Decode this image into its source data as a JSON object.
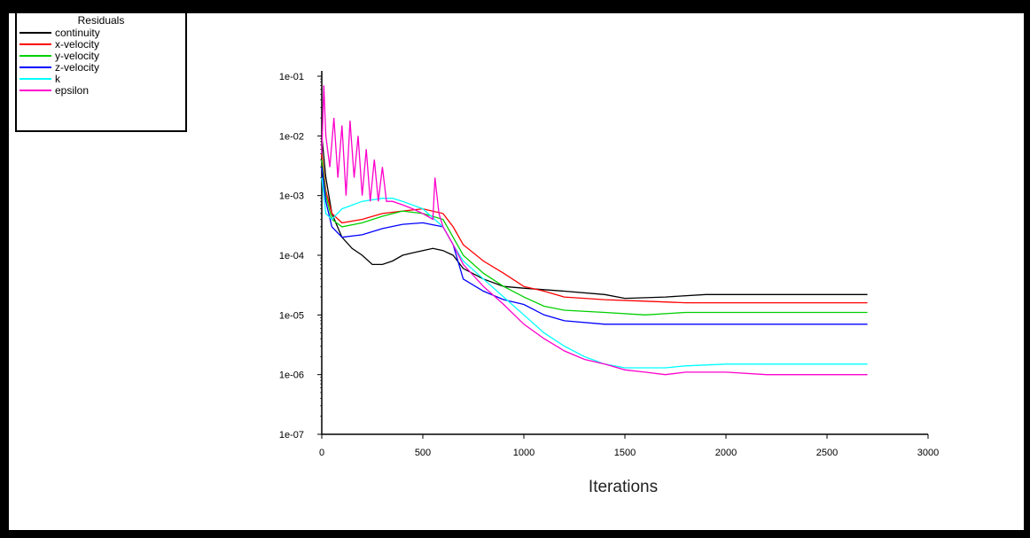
{
  "chart_data": {
    "type": "line",
    "title": "",
    "xlabel": "Iterations",
    "ylabel": "",
    "xlim": [
      0,
      3000
    ],
    "ylim": [
      1e-07,
      0.1
    ],
    "yscale": "log",
    "xticks": [
      "0",
      "500",
      "1000",
      "1500",
      "2000",
      "2500",
      "3000"
    ],
    "yticks": [
      "1e-07",
      "1e-06",
      "1e-05",
      "1e-04",
      "1e-03",
      "1e-02",
      "1e-01"
    ],
    "legend": {
      "title": "Residuals",
      "placement": "top-left"
    },
    "series": [
      {
        "name": "continuity",
        "color": "#000000",
        "x": [
          0,
          20,
          50,
          100,
          150,
          200,
          250,
          300,
          350,
          400,
          450,
          500,
          550,
          600,
          650,
          700,
          800,
          900,
          1000,
          1200,
          1400,
          1500,
          1700,
          1900,
          2000,
          2200,
          2400,
          2700
        ],
        "y": [
          0.01,
          0.002,
          0.0005,
          0.0002,
          0.00013,
          0.0001,
          7e-05,
          7e-05,
          8e-05,
          0.0001,
          0.00011,
          0.00012,
          0.00013,
          0.00012,
          0.0001,
          6e-05,
          4e-05,
          3e-05,
          2.8e-05,
          2.5e-05,
          2.2e-05,
          1.9e-05,
          2e-05,
          2.2e-05,
          2.2e-05,
          2.2e-05,
          2.2e-05,
          2.2e-05
        ]
      },
      {
        "name": "x-velocity",
        "color": "#ff0000",
        "x": [
          0,
          20,
          50,
          100,
          200,
          300,
          400,
          500,
          600,
          650,
          700,
          800,
          900,
          1000,
          1100,
          1200,
          1400,
          1600,
          1800,
          2000,
          2200,
          2400,
          2700
        ],
        "y": [
          0.005,
          0.0012,
          0.0005,
          0.00035,
          0.0004,
          0.0005,
          0.00055,
          0.0006,
          0.0005,
          0.0003,
          0.00015,
          8e-05,
          5e-05,
          3e-05,
          2.5e-05,
          2e-05,
          1.8e-05,
          1.7e-05,
          1.6e-05,
          1.6e-05,
          1.6e-05,
          1.6e-05,
          1.6e-05
        ]
      },
      {
        "name": "y-velocity",
        "color": "#00d000",
        "x": [
          0,
          20,
          50,
          100,
          200,
          300,
          400,
          500,
          600,
          650,
          700,
          800,
          900,
          1000,
          1100,
          1200,
          1400,
          1600,
          1800,
          2000,
          2200,
          2400,
          2700
        ],
        "y": [
          0.004,
          0.001,
          0.0004,
          0.0003,
          0.00035,
          0.00045,
          0.00055,
          0.0005,
          0.0004,
          0.0002,
          0.0001,
          5e-05,
          3e-05,
          2e-05,
          1.4e-05,
          1.2e-05,
          1.1e-05,
          1e-05,
          1.1e-05,
          1.1e-05,
          1.1e-05,
          1.1e-05,
          1.1e-05
        ]
      },
      {
        "name": "z-velocity",
        "color": "#0000ff",
        "x": [
          0,
          20,
          50,
          100,
          200,
          300,
          400,
          500,
          600,
          650,
          700,
          800,
          900,
          1000,
          1100,
          1200,
          1400,
          1600,
          1800,
          2000,
          2200,
          2400,
          2700
        ],
        "y": [
          0.003,
          0.0008,
          0.0003,
          0.0002,
          0.00022,
          0.00028,
          0.00033,
          0.00035,
          0.0003,
          0.00015,
          4e-05,
          2.5e-05,
          1.8e-05,
          1.5e-05,
          1e-05,
          8e-06,
          7e-06,
          7e-06,
          7e-06,
          7e-06,
          7e-06,
          7e-06,
          7e-06
        ]
      },
      {
        "name": "k",
        "color": "#00ffff",
        "x": [
          0,
          20,
          50,
          100,
          200,
          300,
          350,
          400,
          500,
          600,
          650,
          700,
          800,
          900,
          1000,
          1100,
          1200,
          1300,
          1400,
          1500,
          1700,
          1800,
          2000,
          2200,
          2400,
          2700
        ],
        "y": [
          0.002,
          0.0005,
          0.0004,
          0.0006,
          0.0008,
          0.0009,
          0.0009,
          0.0008,
          0.0006,
          0.0003,
          0.00015,
          8e-05,
          4e-05,
          2e-05,
          1e-05,
          5e-06,
          3e-06,
          2e-06,
          1.5e-06,
          1.3e-06,
          1.3e-06,
          1.4e-06,
          1.5e-06,
          1.5e-06,
          1.5e-06,
          1.5e-06
        ]
      },
      {
        "name": "epsilon",
        "color": "#ff00cc",
        "x": [
          0,
          10,
          20,
          40,
          60,
          80,
          100,
          120,
          140,
          160,
          180,
          200,
          220,
          240,
          260,
          280,
          300,
          320,
          350,
          400,
          450,
          500,
          550,
          560,
          580,
          600,
          650,
          700,
          800,
          900,
          1000,
          1100,
          1200,
          1300,
          1400,
          1500,
          1600,
          1700,
          1800,
          2000,
          2200,
          2400,
          2700
        ],
        "y": [
          0.005,
          0.07,
          0.01,
          0.003,
          0.02,
          0.002,
          0.015,
          0.001,
          0.018,
          0.002,
          0.01,
          0.001,
          0.006,
          0.0008,
          0.004,
          0.0008,
          0.003,
          0.0008,
          0.0008,
          0.0007,
          0.0006,
          0.0005,
          0.0004,
          0.002,
          0.0005,
          0.0003,
          0.00015,
          7e-05,
          3e-05,
          1.5e-05,
          7e-06,
          4e-06,
          2.5e-06,
          1.8e-06,
          1.5e-06,
          1.2e-06,
          1.1e-06,
          1e-06,
          1.1e-06,
          1.1e-06,
          1e-06,
          1e-06,
          1e-06
        ]
      }
    ]
  }
}
